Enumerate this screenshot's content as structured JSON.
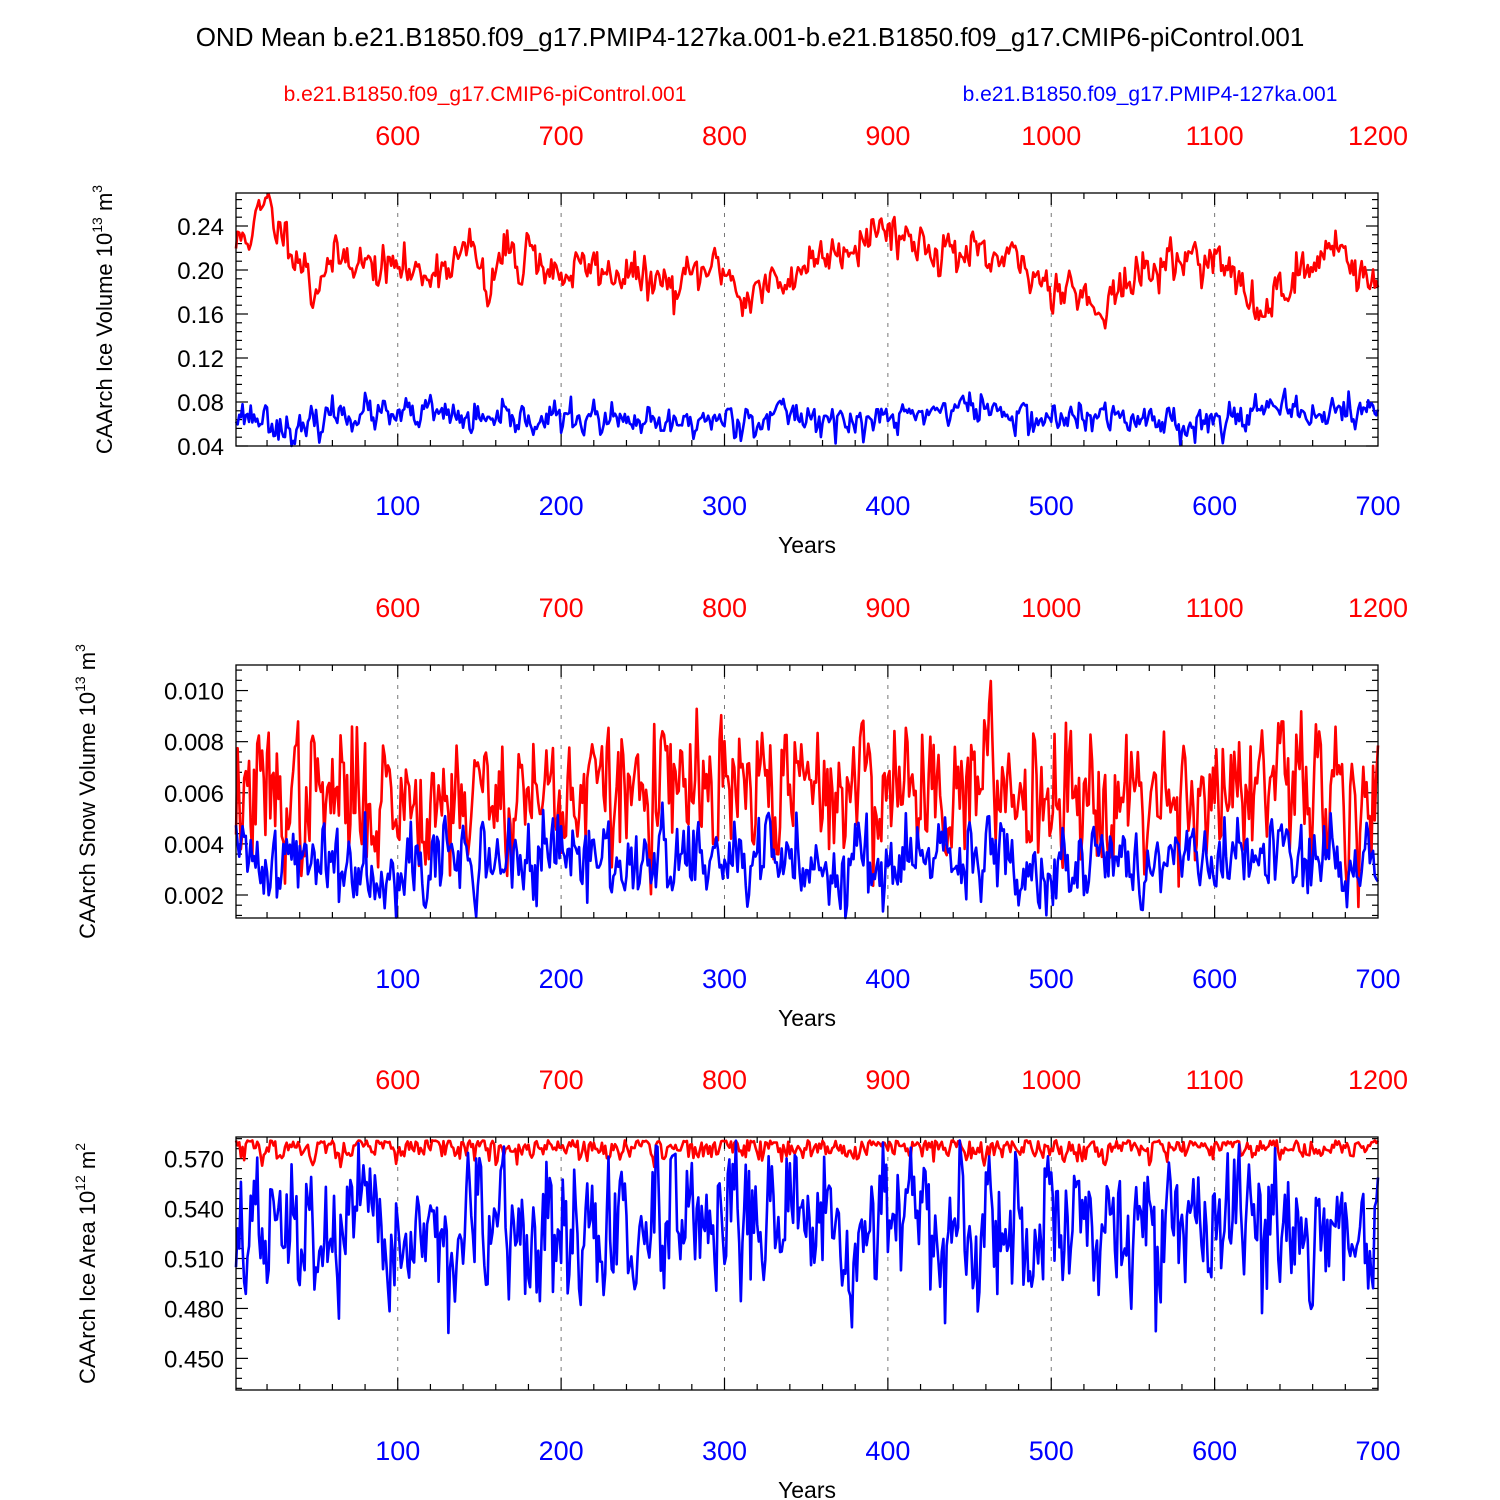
{
  "title": "OND Mean b.e21.B1850.f09_g17.PMIP4-127ka.001-b.e21.B1850.f09_g17.CMIP6-piControl.001",
  "legend": {
    "left": {
      "text": "b.e21.B1850.f09_g17.CMIP6-piControl.001",
      "color": "#ff0000"
    },
    "right": {
      "text": "b.e21.B1850.f09_g17.PMIP4-127ka.001",
      "color": "#0000ff"
    }
  },
  "colors": {
    "control": "#ff0000",
    "experiment": "#0000ff"
  },
  "chart_data": [
    {
      "type": "line",
      "id": "ice-volume",
      "ylabel": {
        "main": "CAArch Ice Volume 10",
        "exp1": "13",
        "unit": " m",
        "exp2": "3"
      },
      "xlabel": "Years",
      "ylim": [
        0.04,
        0.27
      ],
      "yticks": [
        "0.04",
        "0.08",
        "0.12",
        "0.16",
        "0.20",
        "0.24"
      ],
      "xlim_bottom": [
        1,
        700
      ],
      "xticks_bottom": [
        "100",
        "200",
        "300",
        "400",
        "500",
        "600",
        "700"
      ],
      "xlim_top": [
        501,
        1200
      ],
      "xticks_top": [
        "600",
        "700",
        "800",
        "900",
        "1000",
        "1100",
        "1200"
      ],
      "series": [
        {
          "name": "b.e21.B1850.f09_g17.CMIP6-piControl.001",
          "axis": "top",
          "color": "#ff0000",
          "x_start": 501,
          "x_end": 1200,
          "anchors": [
            [
              501,
              0.222
            ],
            [
              505,
              0.23
            ],
            [
              510,
              0.235
            ],
            [
              516,
              0.25
            ],
            [
              520,
              0.262
            ],
            [
              525,
              0.24
            ],
            [
              530,
              0.235
            ],
            [
              535,
              0.225
            ],
            [
              540,
              0.21
            ],
            [
              545,
              0.2
            ],
            [
              548,
              0.175
            ],
            [
              555,
              0.205
            ],
            [
              560,
              0.205
            ],
            [
              570,
              0.215
            ],
            [
              580,
              0.205
            ],
            [
              590,
              0.2
            ],
            [
              600,
              0.205
            ],
            [
              610,
              0.195
            ],
            [
              620,
              0.2
            ],
            [
              630,
              0.205
            ],
            [
              640,
              0.215
            ],
            [
              645,
              0.22
            ],
            [
              650,
              0.205
            ],
            [
              655,
              0.17
            ],
            [
              660,
              0.2
            ],
            [
              665,
              0.215
            ],
            [
              670,
              0.22
            ],
            [
              675,
              0.2
            ],
            [
              680,
              0.225
            ],
            [
              685,
              0.215
            ],
            [
              690,
              0.2
            ],
            [
              700,
              0.195
            ],
            [
              710,
              0.2
            ],
            [
              720,
              0.205
            ],
            [
              730,
              0.195
            ],
            [
              740,
              0.2
            ],
            [
              750,
              0.19
            ],
            [
              760,
              0.19
            ],
            [
              770,
              0.18
            ],
            [
              780,
              0.195
            ],
            [
              790,
              0.2
            ],
            [
              800,
              0.205
            ],
            [
              805,
              0.19
            ],
            [
              810,
              0.175
            ],
            [
              820,
              0.18
            ],
            [
              830,
              0.19
            ],
            [
              835,
              0.18
            ],
            [
              840,
              0.195
            ],
            [
              850,
              0.205
            ],
            [
              860,
              0.215
            ],
            [
              870,
              0.22
            ],
            [
              880,
              0.225
            ],
            [
              890,
              0.235
            ],
            [
              900,
              0.24
            ],
            [
              910,
              0.23
            ],
            [
              920,
              0.225
            ],
            [
              930,
              0.22
            ],
            [
              940,
              0.215
            ],
            [
              950,
              0.215
            ],
            [
              960,
              0.205
            ],
            [
              970,
              0.21
            ],
            [
              980,
              0.205
            ],
            [
              990,
              0.195
            ],
            [
              1000,
              0.185
            ],
            [
              1010,
              0.19
            ],
            [
              1020,
              0.175
            ],
            [
              1025,
              0.165
            ],
            [
              1030,
              0.17
            ],
            [
              1040,
              0.18
            ],
            [
              1050,
              0.19
            ],
            [
              1060,
              0.2
            ],
            [
              1070,
              0.205
            ],
            [
              1080,
              0.21
            ],
            [
              1090,
              0.215
            ],
            [
              1100,
              0.21
            ],
            [
              1110,
              0.195
            ],
            [
              1120,
              0.18
            ],
            [
              1125,
              0.155
            ],
            [
              1130,
              0.165
            ],
            [
              1140,
              0.185
            ],
            [
              1150,
              0.195
            ],
            [
              1160,
              0.2
            ],
            [
              1165,
              0.21
            ],
            [
              1170,
              0.225
            ],
            [
              1175,
              0.23
            ],
            [
              1180,
              0.215
            ],
            [
              1185,
              0.2
            ],
            [
              1190,
              0.195
            ],
            [
              1195,
              0.185
            ],
            [
              1200,
              0.19
            ]
          ],
          "noise": 0.009,
          "seed": 11
        },
        {
          "name": "b.e21.B1850.f09_g17.PMIP4-127ka.001",
          "axis": "bottom",
          "color": "#0000ff",
          "x_start": 1,
          "x_end": 700,
          "anchors": [
            [
              1,
              0.07
            ],
            [
              20,
              0.065
            ],
            [
              40,
              0.05
            ],
            [
              60,
              0.07
            ],
            [
              80,
              0.07
            ],
            [
              100,
              0.065
            ],
            [
              120,
              0.07
            ],
            [
              140,
              0.065
            ],
            [
              160,
              0.06
            ],
            [
              180,
              0.065
            ],
            [
              200,
              0.065
            ],
            [
              220,
              0.065
            ],
            [
              240,
              0.06
            ],
            [
              260,
              0.058
            ],
            [
              280,
              0.062
            ],
            [
              300,
              0.065
            ],
            [
              320,
              0.065
            ],
            [
              340,
              0.07
            ],
            [
              360,
              0.065
            ],
            [
              380,
              0.06
            ],
            [
              400,
              0.065
            ],
            [
              420,
              0.07
            ],
            [
              440,
              0.075
            ],
            [
              460,
              0.075
            ],
            [
              480,
              0.065
            ],
            [
              500,
              0.065
            ],
            [
              520,
              0.065
            ],
            [
              540,
              0.065
            ],
            [
              560,
              0.065
            ],
            [
              580,
              0.062
            ],
            [
              600,
              0.06
            ],
            [
              620,
              0.075
            ],
            [
              640,
              0.07
            ],
            [
              660,
              0.07
            ],
            [
              680,
              0.072
            ],
            [
              700,
              0.07
            ]
          ],
          "noise": 0.007,
          "seed": 23
        }
      ]
    },
    {
      "type": "line",
      "id": "snow-volume",
      "ylabel": {
        "main": "CAArch Snow Volume 10",
        "exp1": "13",
        "unit": " m",
        "exp2": "3"
      },
      "xlabel": "Years",
      "ylim": [
        0.0011,
        0.011
      ],
      "yticks": [
        "0.002",
        "0.004",
        "0.006",
        "0.008",
        "0.010"
      ],
      "xlim_bottom": [
        1,
        700
      ],
      "xticks_bottom": [
        "100",
        "200",
        "300",
        "400",
        "500",
        "600",
        "700"
      ],
      "xlim_top": [
        501,
        1200
      ],
      "xticks_top": [
        "600",
        "700",
        "800",
        "900",
        "1000",
        "1100",
        "1200"
      ],
      "series": [
        {
          "name": "b.e21.B1850.f09_g17.CMIP6-piControl.001",
          "axis": "top",
          "color": "#ff0000",
          "x_start": 501,
          "x_end": 1200,
          "anchors": [
            [
              501,
              0.0058
            ],
            [
              600,
              0.0058
            ],
            [
              700,
              0.006
            ],
            [
              800,
              0.006
            ],
            [
              900,
              0.0063
            ],
            [
              1000,
              0.0063
            ],
            [
              1100,
              0.006
            ],
            [
              1200,
              0.006
            ]
          ],
          "noise": 0.0013,
          "seed": 37
        },
        {
          "name": "b.e21.B1850.f09_g17.PMIP4-127ka.001",
          "axis": "bottom",
          "color": "#0000ff",
          "x_start": 1,
          "x_end": 700,
          "anchors": [
            [
              1,
              0.0034
            ],
            [
              100,
              0.0033
            ],
            [
              200,
              0.0034
            ],
            [
              300,
              0.0033
            ],
            [
              400,
              0.0033
            ],
            [
              500,
              0.0033
            ],
            [
              600,
              0.0033
            ],
            [
              700,
              0.0034
            ]
          ],
          "noise": 0.0008,
          "seed": 41
        }
      ]
    },
    {
      "type": "line",
      "id": "ice-area",
      "ylabel": {
        "main": "CAArch Ice Area 10",
        "exp1": "12",
        "unit": " m",
        "exp2": "2"
      },
      "xlabel": "Years",
      "ylim": [
        0.431,
        0.583
      ],
      "yticks": [
        "0.450",
        "0.480",
        "0.510",
        "0.540",
        "0.570"
      ],
      "xlim_bottom": [
        1,
        700
      ],
      "xticks_bottom": [
        "100",
        "200",
        "300",
        "400",
        "500",
        "600",
        "700"
      ],
      "xlim_top": [
        501,
        1200
      ],
      "xticks_top": [
        "600",
        "700",
        "800",
        "900",
        "1000",
        "1100",
        "1200"
      ],
      "series": [
        {
          "name": "b.e21.B1850.f09_g17.CMIP6-piControl.001",
          "axis": "top",
          "color": "#ff0000",
          "x_start": 501,
          "x_end": 1200,
          "anchors": [
            [
              501,
              0.577
            ],
            [
              1200,
              0.577
            ]
          ],
          "noise": 0.004,
          "cap": 0.581,
          "seed": 53
        },
        {
          "name": "b.e21.B1850.f09_g17.PMIP4-127ka.001",
          "axis": "bottom",
          "color": "#0000ff",
          "x_start": 1,
          "x_end": 700,
          "anchors": [
            [
              1,
              0.525
            ],
            [
              100,
              0.522
            ],
            [
              200,
              0.522
            ],
            [
              300,
              0.525
            ],
            [
              400,
              0.527
            ],
            [
              500,
              0.528
            ],
            [
              600,
              0.525
            ],
            [
              700,
              0.528
            ]
          ],
          "noise": 0.02,
          "cap": 0.581,
          "seed": 67
        }
      ]
    }
  ]
}
